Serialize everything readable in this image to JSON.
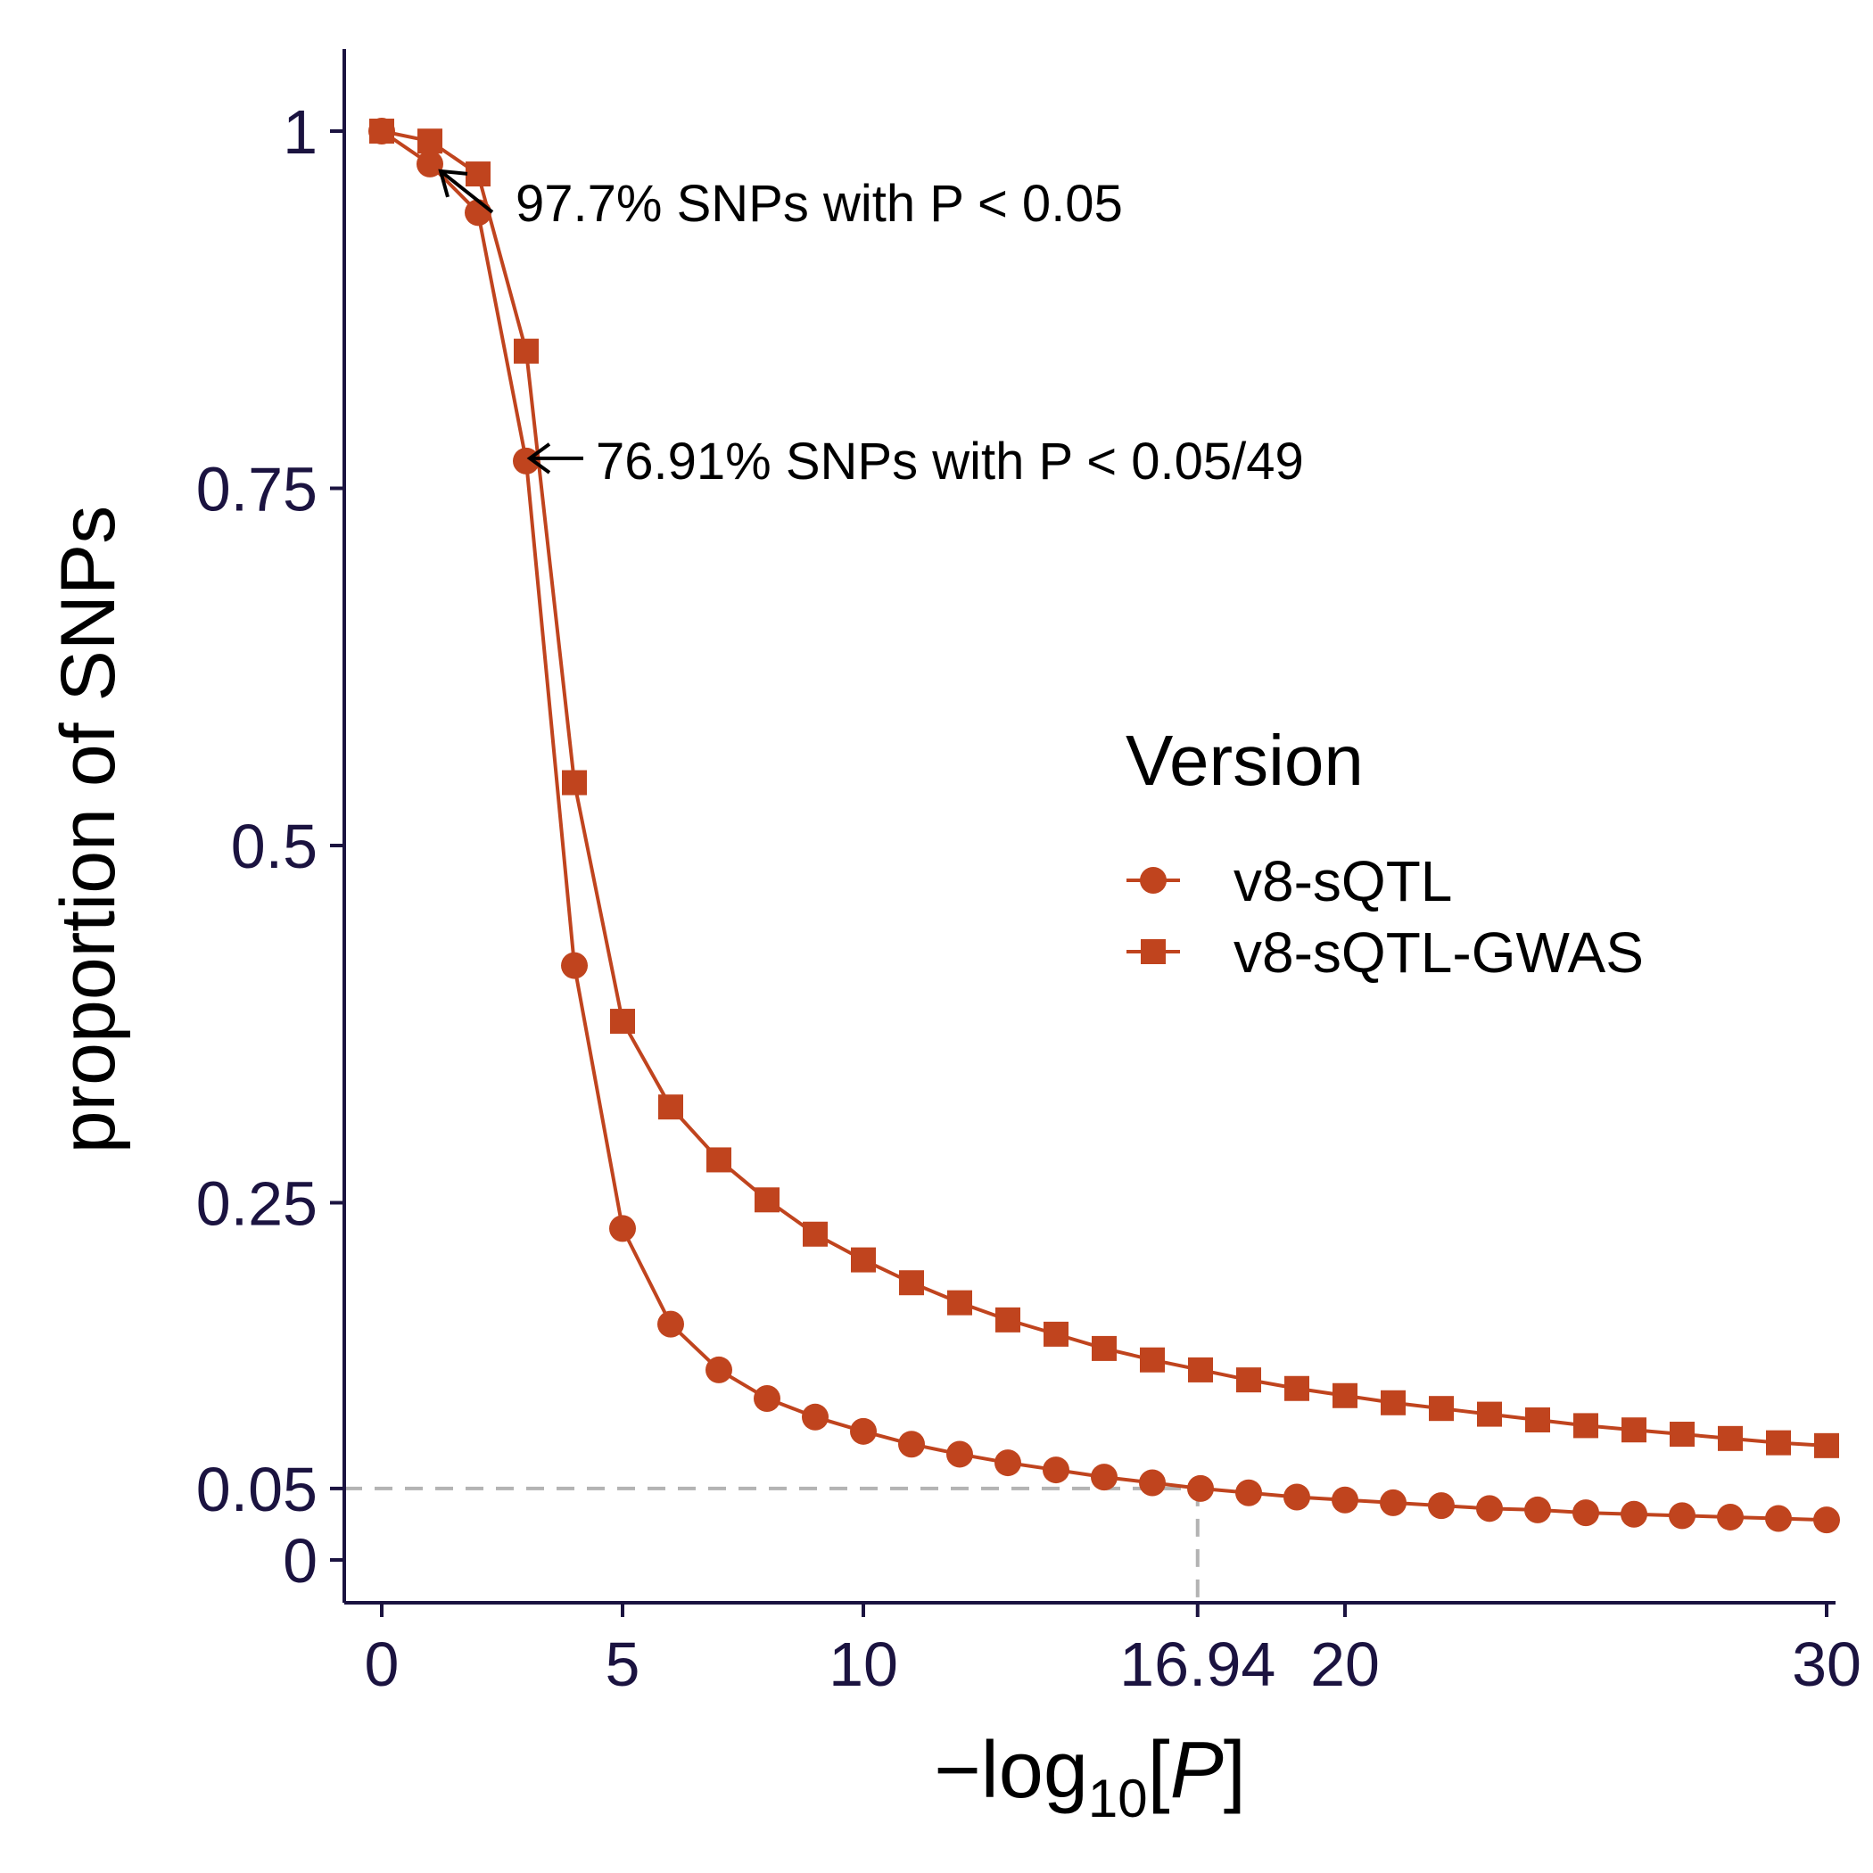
{
  "chart_data": {
    "type": "line",
    "xlabel": "−log10[P]",
    "xlabel_parts": {
      "prefix": "−log",
      "sub": "10",
      "open": "[",
      "var": "P",
      "close": "]"
    },
    "ylabel": "proportion of SNPs",
    "xlim": [
      0,
      30
    ],
    "ylim": [
      0,
      1
    ],
    "x_ticks": [
      0,
      5,
      10,
      16.94,
      20,
      30
    ],
    "x_tick_labels": [
      "0",
      "5",
      "10",
      "16.94",
      "20",
      "30"
    ],
    "y_ticks": [
      0,
      0.05,
      0.25,
      0.5,
      0.75,
      1
    ],
    "y_tick_labels": [
      "0",
      "0.05",
      "0.25",
      "0.5",
      "0.75",
      "1"
    ],
    "grid": false,
    "reference_lines": {
      "x": 16.94,
      "y": 0.05,
      "color": "#b3b3b3",
      "style": "dashed"
    },
    "x": [
      0,
      1,
      2,
      3,
      4,
      5,
      6,
      7,
      8,
      9,
      10,
      11,
      12,
      13,
      14,
      15,
      16,
      17,
      18,
      19,
      20,
      21,
      22,
      23,
      24,
      25,
      26,
      27,
      28,
      29,
      30
    ],
    "series": [
      {
        "name": "v8-sQTL",
        "marker": "circle",
        "color": "#c0441e",
        "values": [
          1.0,
          0.977,
          0.943,
          0.7691,
          0.416,
          0.232,
          0.165,
          0.133,
          0.113,
          0.1,
          0.09,
          0.081,
          0.074,
          0.068,
          0.063,
          0.058,
          0.054,
          0.05,
          0.047,
          0.044,
          0.042,
          0.04,
          0.038,
          0.036,
          0.035,
          0.033,
          0.032,
          0.031,
          0.03,
          0.029,
          0.028
        ]
      },
      {
        "name": "v8-sQTL-GWAS",
        "marker": "square",
        "color": "#c0441e",
        "values": [
          1.0,
          0.993,
          0.97,
          0.846,
          0.544,
          0.377,
          0.317,
          0.28,
          0.252,
          0.228,
          0.21,
          0.194,
          0.18,
          0.168,
          0.158,
          0.148,
          0.14,
          0.133,
          0.126,
          0.12,
          0.115,
          0.11,
          0.106,
          0.102,
          0.098,
          0.094,
          0.091,
          0.088,
          0.085,
          0.082,
          0.08
        ]
      }
    ],
    "annotations": [
      {
        "text": "97.7% SNPs with P < 0.05",
        "x": 1,
        "y": 0.977
      },
      {
        "text": "76.91% SNPs with P < 0.05/49",
        "x": 3,
        "y": 0.7691
      }
    ],
    "legend": {
      "title": "Version",
      "position": "right",
      "entries": [
        "v8-sQTL",
        "v8-sQTL-GWAS"
      ]
    }
  }
}
